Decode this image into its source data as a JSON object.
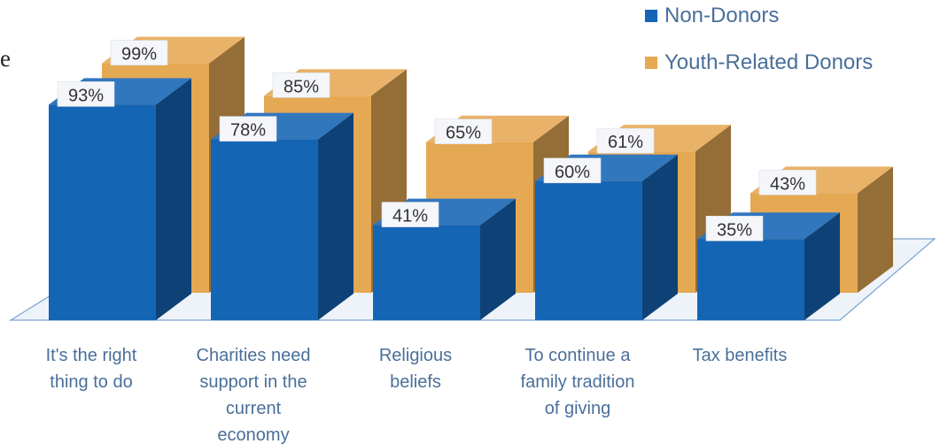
{
  "fragment_text": "e",
  "chart_data": {
    "type": "bar",
    "categories": [
      [
        "It's the right",
        "thing to do"
      ],
      [
        "Charities need",
        "support in the",
        "current",
        "economy"
      ],
      [
        "Religious",
        "beliefs"
      ],
      [
        "To continue a",
        "family tradition",
        "of giving"
      ],
      [
        "Tax benefits"
      ]
    ],
    "series": [
      {
        "name": "Non-Donors",
        "values": [
          93,
          78,
          41,
          60,
          35
        ],
        "labels": [
          "93%",
          "78%",
          "41%",
          "60%",
          "35%"
        ],
        "color": "#1565b5"
      },
      {
        "name": "Youth-Related Donors",
        "values": [
          99,
          85,
          65,
          61,
          43
        ],
        "labels": [
          "99%",
          "85%",
          "65%",
          "61%",
          "43%"
        ],
        "color": "#e5a853"
      }
    ],
    "ylim": [
      0,
      100
    ],
    "grid": false,
    "legend_position": "top-right",
    "three_d": true
  }
}
